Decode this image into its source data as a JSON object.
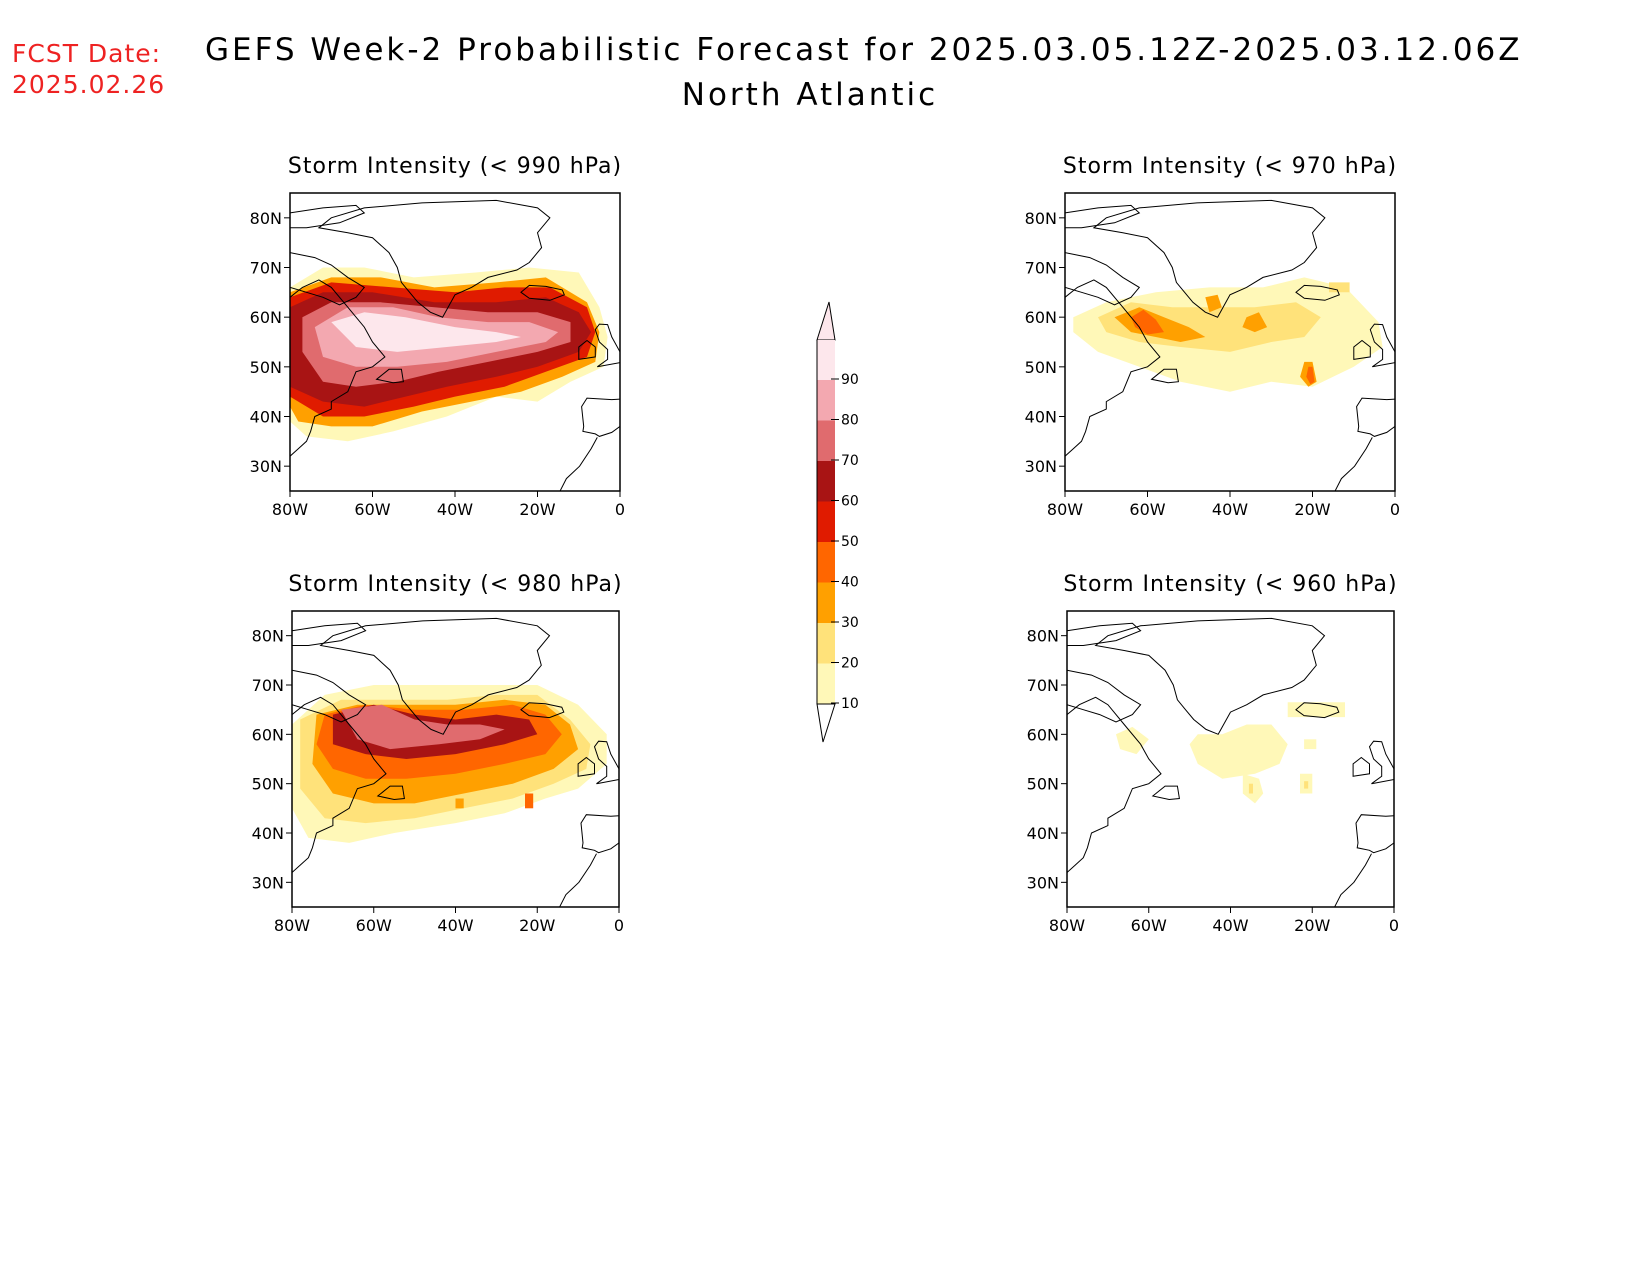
{
  "header": {
    "fcst_label": "FCST Date:",
    "fcst_date": "2025.02.26",
    "title": "GEFS Week-2 Probabilistic Forecast for 2025.03.05.12Z-2025.03.12.06Z",
    "region": "North Atlantic"
  },
  "axes": {
    "lat_ticks": [
      "80N",
      "70N",
      "60N",
      "50N",
      "40N",
      "30N"
    ],
    "lon_ticks": [
      "80W",
      "60W",
      "40W",
      "20W",
      "0"
    ]
  },
  "panels": [
    {
      "title": "Storm Intensity (< 990 hPa)"
    },
    {
      "title": "Storm Intensity (< 970 hPa)"
    },
    {
      "title": "Storm Intensity (< 980 hPa)"
    },
    {
      "title": "Storm Intensity (< 960 hPa)"
    }
  ],
  "colorbar": {
    "labels": [
      "90",
      "80",
      "70",
      "60",
      "50",
      "40",
      "30",
      "20",
      "10"
    ],
    "colors": [
      "#fde7ec",
      "#f3a8b0",
      "#e06b6e",
      "#a81414",
      "#e01b00",
      "#ff6600",
      "#ffa000",
      "#ffe27a",
      "#fff8b8"
    ]
  }
}
